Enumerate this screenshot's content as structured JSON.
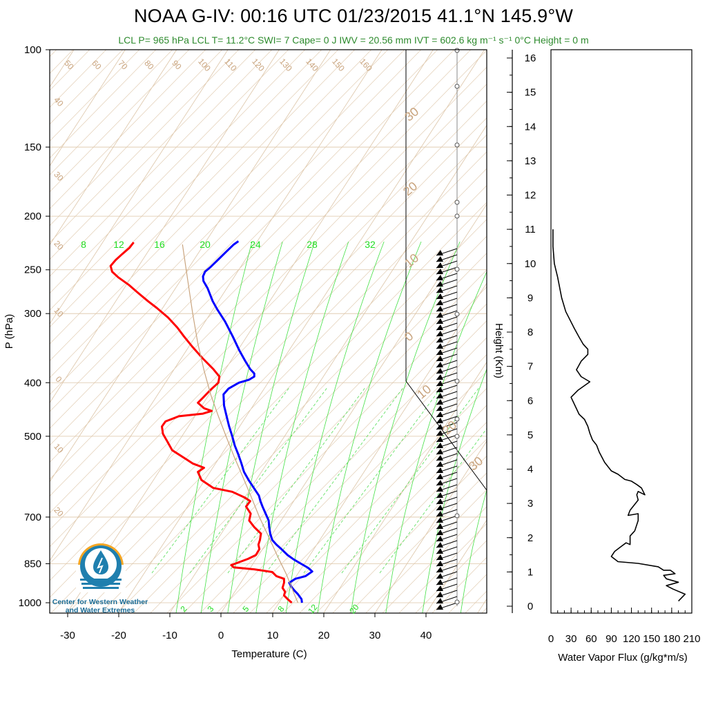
{
  "title": "NOAA G-IV: 00:16 UTC 01/23/2015  41.1°N 145.9°W",
  "subtitle": "LCL P= 965 hPa  LCL T= 11.2°C  SWI= 7  Cape= 0 J  IWV = 20.56 mm  IVT = 602.6 kg m⁻¹ s⁻¹  0°C Height = 0 m",
  "logo": {
    "line1": "Center for Western Weather",
    "line2": "and Water Extremes"
  },
  "colors": {
    "temperature": "#ff0000",
    "dewpoint_or_theta": "#0000ff",
    "isotherm": "#c9a47e",
    "mixing_ratio": "#22dd22",
    "flux": "#000000"
  },
  "chart_data": [
    {
      "type": "line",
      "subtype": "skew-T log-P",
      "xlabel": "Temperature (C)",
      "ylabel": "P (hPa)",
      "x_ticks": [
        "-30",
        "-20",
        "-10",
        "0",
        "10",
        "20",
        "30",
        "40"
      ],
      "y_ticks": [
        "100",
        "150",
        "200",
        "250",
        "300",
        "400",
        "500",
        "700",
        "850",
        "1000"
      ],
      "y_scale": "log",
      "isotherm_labels_top": [
        "50",
        "60",
        "70",
        "80",
        "90",
        "100",
        "110",
        "120",
        "130",
        "140",
        "150",
        "160"
      ],
      "isotherm_labels_left": [
        "40",
        "30",
        "20",
        "10",
        "0",
        "10",
        "20"
      ],
      "isotherm_labels_right": [
        "30",
        "20",
        "10",
        "0",
        "10",
        "20",
        "30"
      ],
      "mixing_ratio_labels_top": [
        "8",
        "12",
        "16",
        "20",
        "24",
        "28",
        "32"
      ],
      "mixing_ratio_labels_bottom": [
        "2",
        "3",
        "5",
        "8",
        "12",
        "20"
      ],
      "series": [
        {
          "color": "red",
          "points": [
            [
              13.8,
              1000
            ],
            [
              13.0,
              985
            ],
            [
              12.3,
              970
            ],
            [
              12.5,
              955
            ],
            [
              12.0,
              940
            ],
            [
              12.3,
              920
            ],
            [
              12.3,
              905
            ],
            [
              10.8,
              895
            ],
            [
              10.0,
              880
            ],
            [
              6.5,
              870
            ],
            [
              2.5,
              863
            ],
            [
              2.0,
              855
            ],
            [
              3.5,
              845
            ],
            [
              5.3,
              833
            ],
            [
              6.8,
              820
            ],
            [
              7.5,
              800
            ],
            [
              7.3,
              785
            ],
            [
              7.6,
              770
            ],
            [
              7.8,
              750
            ],
            [
              6.5,
              730
            ],
            [
              5.5,
              710
            ],
            [
              5.8,
              690
            ],
            [
              4.9,
              670
            ],
            [
              5.7,
              655
            ],
            [
              4.6,
              645
            ],
            [
              2.2,
              630
            ],
            [
              -1.5,
              620
            ],
            [
              -3.8,
              600
            ],
            [
              -4.5,
              580
            ],
            [
              -3.3,
              570
            ],
            [
              -5.5,
              560
            ],
            [
              -6.8,
              550
            ],
            [
              -9.5,
              530
            ],
            [
              -10.5,
              510
            ],
            [
              -11.3,
              495
            ],
            [
              -11.5,
              480
            ],
            [
              -10.8,
              470
            ],
            [
              -8.2,
              460
            ],
            [
              -3.5,
              455
            ],
            [
              -1.8,
              450
            ],
            [
              -3.3,
              445
            ],
            [
              -4.5,
              435
            ],
            [
              -3.4,
              425
            ],
            [
              -2.0,
              412
            ],
            [
              -0.5,
              400
            ],
            [
              -0.3,
              390
            ],
            [
              -1.5,
              378
            ],
            [
              -3.5,
              362
            ],
            [
              -5.5,
              345
            ],
            [
              -7.2,
              330
            ],
            [
              -8.5,
              318
            ],
            [
              -10.3,
              305
            ],
            [
              -12.5,
              293
            ],
            [
              -14.2,
              285
            ],
            [
              -16.2,
              275
            ],
            [
              -18.0,
              266
            ],
            [
              -20.0,
              258
            ],
            [
              -21.2,
              252
            ],
            [
              -21.5,
              246
            ],
            [
              -20.5,
              240
            ],
            [
              -19.2,
              234
            ],
            [
              -17.8,
              228
            ],
            [
              -17.0,
              223
            ]
          ]
        },
        {
          "color": "blue",
          "points": [
            [
              15.8,
              1000
            ],
            [
              15.7,
              985
            ],
            [
              15.0,
              965
            ],
            [
              14.3,
              950
            ],
            [
              13.7,
              935
            ],
            [
              13.3,
              920
            ],
            [
              14.5,
              905
            ],
            [
              16.5,
              895
            ],
            [
              17.8,
              878
            ],
            [
              17.0,
              865
            ],
            [
              15.6,
              850
            ],
            [
              14.2,
              835
            ],
            [
              13.0,
              820
            ],
            [
              11.8,
              800
            ],
            [
              10.8,
              785
            ],
            [
              10.0,
              770
            ],
            [
              9.6,
              750
            ],
            [
              9.4,
              730
            ],
            [
              9.3,
              710
            ],
            [
              8.7,
              690
            ],
            [
              8.1,
              670
            ],
            [
              7.7,
              655
            ],
            [
              7.4,
              640
            ],
            [
              6.4,
              620
            ],
            [
              5.4,
              600
            ],
            [
              4.5,
              580
            ],
            [
              4.0,
              560
            ],
            [
              3.4,
              540
            ],
            [
              2.7,
              520
            ],
            [
              2.2,
              500
            ],
            [
              1.6,
              480
            ],
            [
              1.1,
              460
            ],
            [
              0.6,
              440
            ],
            [
              0.5,
              420
            ],
            [
              1.5,
              410
            ],
            [
              3.5,
              400
            ],
            [
              5.5,
              395
            ],
            [
              6.5,
              390
            ],
            [
              6.5,
              385
            ],
            [
              5.7,
              378
            ],
            [
              4.7,
              365
            ],
            [
              3.6,
              350
            ],
            [
              2.3,
              330
            ],
            [
              0.8,
              310
            ],
            [
              -0.7,
              295
            ],
            [
              -1.6,
              285
            ],
            [
              -2.6,
              270
            ],
            [
              -3.4,
              262
            ],
            [
              -3.5,
              257
            ],
            [
              -3.1,
              252
            ],
            [
              -2.0,
              247
            ],
            [
              -0.6,
              240
            ],
            [
              1.0,
              232
            ],
            [
              2.5,
              225
            ],
            [
              3.4,
              222
            ]
          ]
        },
        {
          "color": "tan",
          "points": [
            [
              -7.5,
              225
            ],
            [
              -6.5,
              260
            ],
            [
              -5.5,
              300
            ],
            [
              -4.5,
              340
            ],
            [
              -3.3,
              380
            ],
            [
              -2.0,
              420
            ],
            [
              -0.5,
              460
            ],
            [
              1.0,
              500
            ],
            [
              2.6,
              545
            ],
            [
              4.2,
              590
            ],
            [
              5.8,
              640
            ],
            [
              7.5,
              700
            ],
            [
              9.3,
              760
            ],
            [
              11.2,
              830
            ],
            [
              12.8,
              890
            ],
            [
              14.2,
              960
            ],
            [
              15.0,
              1000
            ]
          ]
        }
      ]
    },
    {
      "type": "line",
      "xlabel": "Water Vapor Flux (g/kg*m/s)",
      "ylabel": "Height (Km)",
      "x_ticks": [
        "0",
        "30",
        "60",
        "90",
        "120",
        "150",
        "180",
        "210"
      ],
      "y_ticks": [
        "0",
        "1",
        "2",
        "3",
        "4",
        "5",
        "6",
        "7",
        "8",
        "9",
        "10",
        "11",
        "12",
        "13",
        "14",
        "15",
        "16"
      ],
      "xlim": [
        0,
        210
      ],
      "ylim": [
        0,
        16
      ],
      "series": [
        {
          "color": "black",
          "points": [
            [
              190,
              0.15
            ],
            [
              200,
              0.35
            ],
            [
              182,
              0.5
            ],
            [
              172,
              0.6
            ],
            [
              190,
              0.7
            ],
            [
              172,
              0.8
            ],
            [
              168,
              0.9
            ],
            [
              185,
              0.95
            ],
            [
              178,
              1.05
            ],
            [
              168,
              1.05
            ],
            [
              160,
              1.15
            ],
            [
              130,
              1.25
            ],
            [
              100,
              1.3
            ],
            [
              90,
              1.45
            ],
            [
              95,
              1.6
            ],
            [
              105,
              1.75
            ],
            [
              112,
              1.85
            ],
            [
              118,
              1.8
            ],
            [
              118,
              2.05
            ],
            [
              125,
              2.2
            ],
            [
              130,
              2.5
            ],
            [
              130,
              2.7
            ],
            [
              115,
              2.65
            ],
            [
              118,
              2.8
            ],
            [
              130,
              3.1
            ],
            [
              128,
              3.25
            ],
            [
              130,
              3.35
            ],
            [
              140,
              3.25
            ],
            [
              135,
              3.45
            ],
            [
              128,
              3.55
            ],
            [
              120,
              3.65
            ],
            [
              110,
              3.7
            ],
            [
              100,
              3.85
            ],
            [
              90,
              3.95
            ],
            [
              80,
              4.2
            ],
            [
              72,
              4.5
            ],
            [
              68,
              4.7
            ],
            [
              62,
              4.85
            ],
            [
              58,
              5.05
            ],
            [
              55,
              5.25
            ],
            [
              50,
              5.45
            ],
            [
              42,
              5.6
            ],
            [
              30,
              6.1
            ],
            [
              40,
              6.3
            ],
            [
              58,
              6.55
            ],
            [
              45,
              6.7
            ],
            [
              38,
              6.9
            ],
            [
              45,
              7.15
            ],
            [
              55,
              7.35
            ],
            [
              55,
              7.5
            ],
            [
              48,
              7.65
            ],
            [
              42,
              7.85
            ],
            [
              35,
              8.1
            ],
            [
              22,
              8.6
            ],
            [
              16,
              9.0
            ],
            [
              10,
              9.6
            ],
            [
              5,
              10.0
            ],
            [
              3,
              10.5
            ],
            [
              3,
              11.0
            ]
          ]
        }
      ]
    }
  ]
}
